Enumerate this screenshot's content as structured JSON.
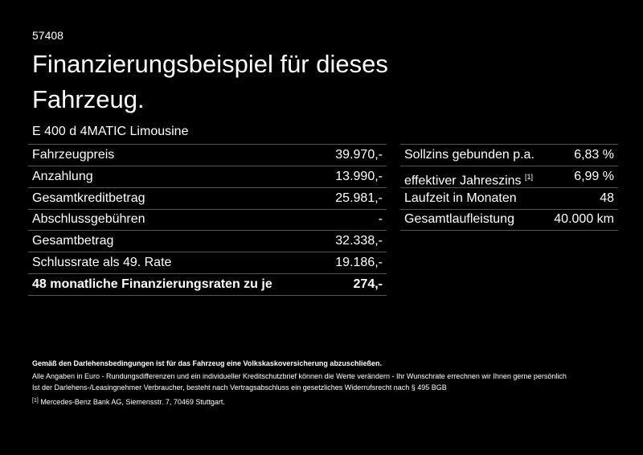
{
  "header": {
    "code": "57408",
    "title_line1": "Finanzierungsbeispiel für dieses",
    "title_line2": "Fahrzeug."
  },
  "model": "E 400 d 4MATIC Limousine",
  "left_table": {
    "rows": [
      [
        "Fahrzeugpreis",
        "39.970,-"
      ],
      [
        "Anzahlung",
        "13.990,-"
      ],
      [
        "Gesamtkreditbetrag",
        "25.981,-"
      ],
      [
        "Abschlussgebühren",
        "-"
      ],
      [
        "Gesamtbetrag",
        "32.338,-"
      ],
      [
        "Schlussrate als 49. Rate",
        "19.186,-"
      ],
      [
        "48 monatliche Finanzierungsraten zu je",
        "274,-"
      ]
    ]
  },
  "right_table": {
    "rows": [
      {
        "label": "Sollzins gebunden p.a.",
        "value": "6,83 %"
      },
      {
        "label": "effektiver Jahreszins",
        "note": "[1]",
        "value": "6,99 %"
      },
      {
        "label": "Laufzeit in Monaten",
        "value": "48"
      },
      {
        "label": "Gesamtlaufleistung",
        "value": "40.000 km"
      }
    ]
  },
  "footer": {
    "bold_note": "Gemäß den Darlehensbedingungen ist für das Fahrzeug eine Volkskaskoversicherung abzuschließen.",
    "line1": "Alle Angaben in Euro - Rundungsdifferenzen und ein individueller Kreditschutzbrief können die Werte verändern - Ihr Wunschrate errechnen wir Ihnen gerne persönlich",
    "line2": "Ist der Darlehens-/Leasingnehmer Verbraucher, besteht nach Vertragsabschluss ein gesetzliches Widerrufsrecht nach § 495 BGB",
    "footnote_marker": "[1]",
    "footnote_text": "Mercedes-Benz Bank AG, Siemensstr. 7, 70469 Stuttgart."
  }
}
